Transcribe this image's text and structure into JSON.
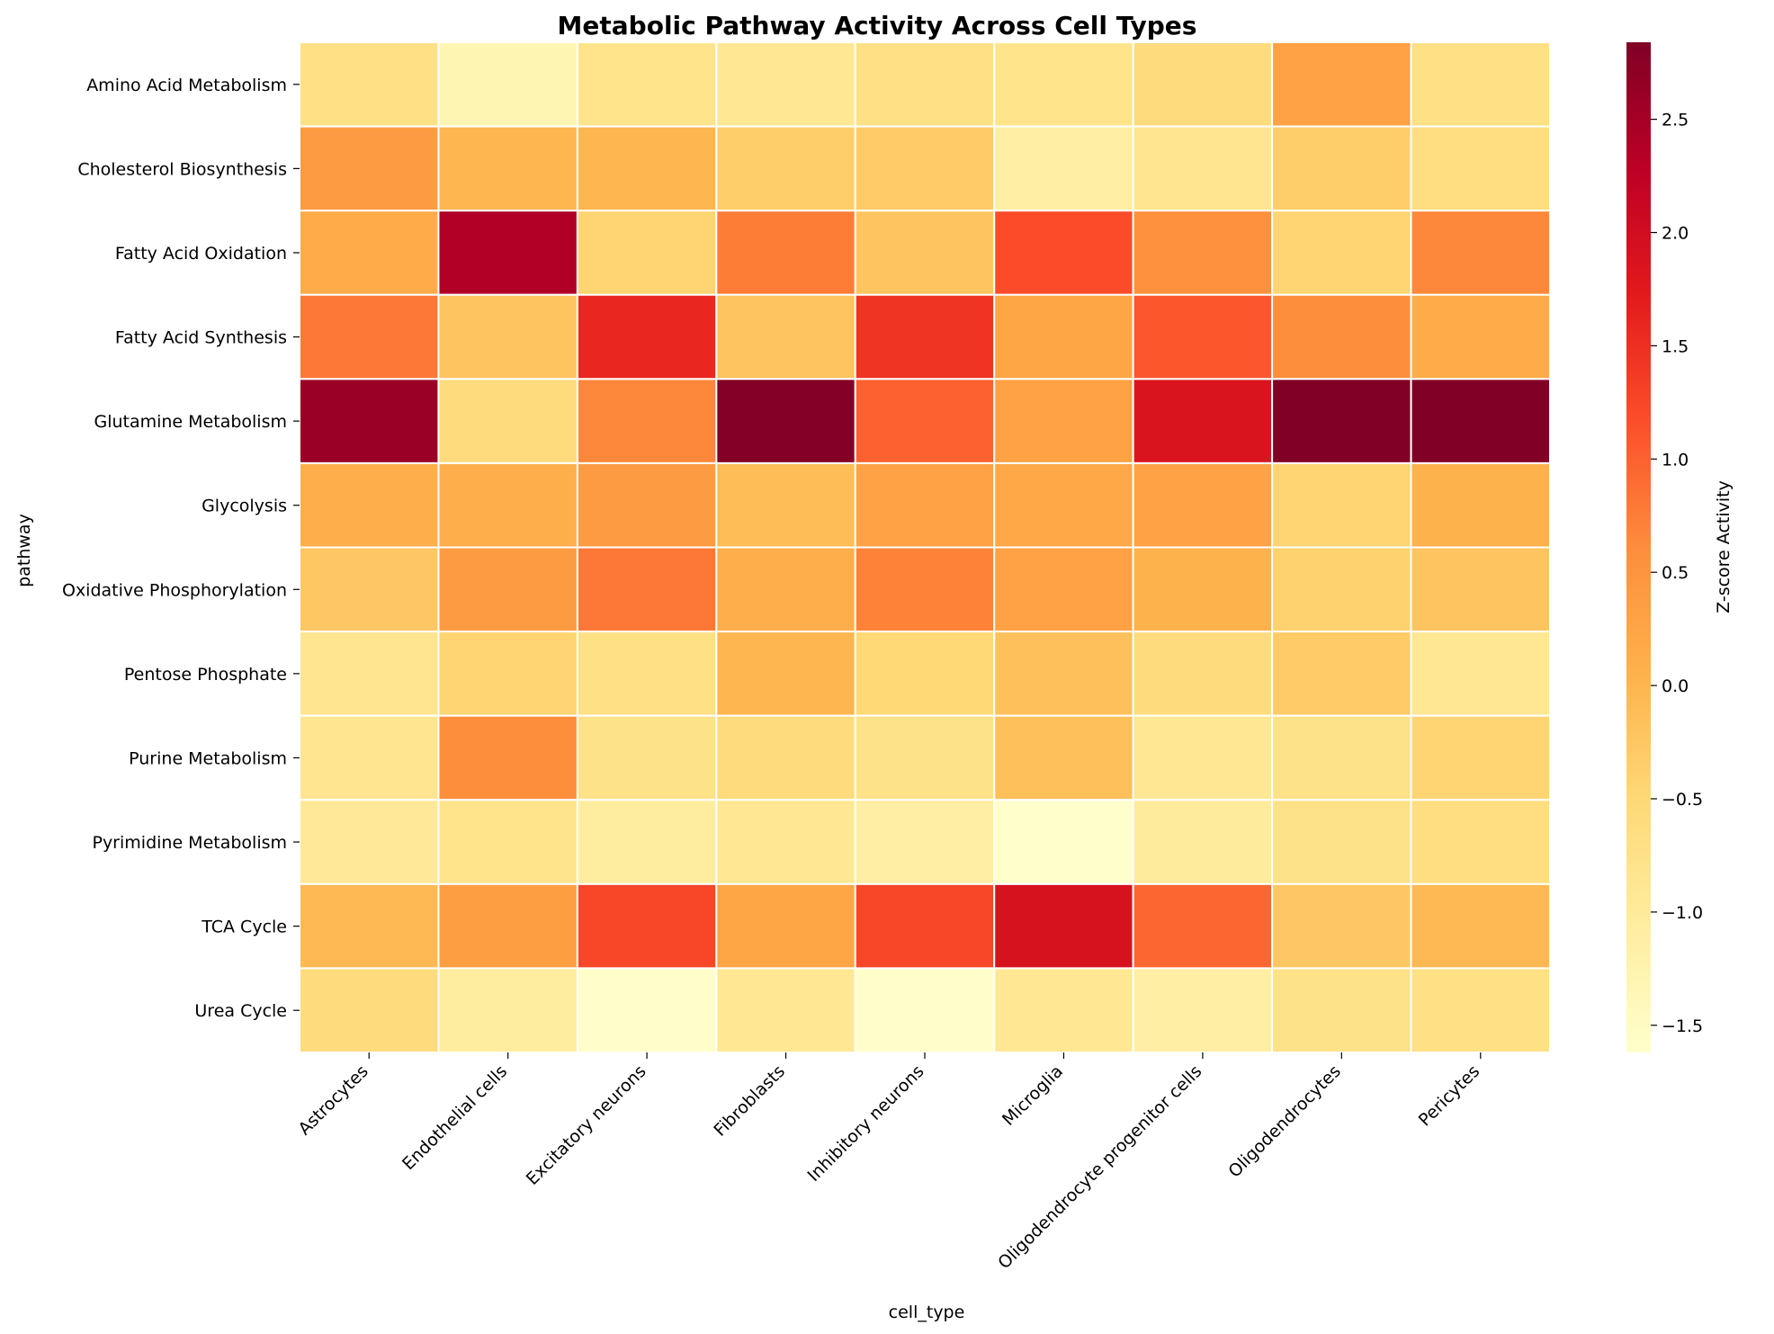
{
  "chart_data": {
    "type": "heatmap",
    "title": "Metabolic Pathway Activity Across Cell Types",
    "xlabel": "cell_type",
    "ylabel": "pathway",
    "colorbar_label": "Z-score Activity",
    "colormap": "YlOrRd",
    "vmin": -1.62,
    "vmax": 2.84,
    "colorbar_ticks": [
      "2.5",
      "2.0",
      "1.5",
      "1.0",
      "0.5",
      "0.0",
      "−0.5",
      "−1.0",
      "−1.5"
    ],
    "colorbar_tick_values": [
      2.5,
      2.0,
      1.5,
      1.0,
      0.5,
      0.0,
      -0.5,
      -1.0,
      -1.5
    ],
    "grid": false,
    "columns": [
      "Astrocytes",
      "Endothelial cells",
      "Excitatory neurons",
      "Fibroblasts",
      "Inhibitory neurons",
      "Microglia",
      "Oligodendrocyte progenitor cells",
      "Oligodendrocytes",
      "Pericytes"
    ],
    "rows": [
      "Amino Acid Metabolism",
      "Cholesterol Biosynthesis",
      "Fatty Acid Oxidation",
      "Fatty Acid Synthesis",
      "Glutamine Metabolism",
      "Glycolysis",
      "Oxidative Phosphorylation",
      "Pentose Phosphate",
      "Purine Metabolism",
      "Pyrimidine Metabolism",
      "TCA Cycle",
      "Urea Cycle"
    ],
    "values": [
      [
        -0.7,
        -1.3,
        -0.8,
        -0.9,
        -0.7,
        -0.8,
        -0.6,
        0.3,
        -0.7
      ],
      [
        0.4,
        0.0,
        0.0,
        -0.35,
        -0.3,
        -1.1,
        -0.85,
        -0.35,
        -0.65
      ],
      [
        0.15,
        2.4,
        -0.45,
        0.75,
        -0.2,
        1.2,
        0.55,
        -0.45,
        0.65
      ],
      [
        0.8,
        -0.2,
        1.6,
        -0.2,
        1.45,
        0.25,
        1.1,
        0.6,
        0.15
      ],
      [
        2.6,
        -0.6,
        0.65,
        2.8,
        1.0,
        0.3,
        1.85,
        2.9,
        2.9
      ],
      [
        0.1,
        0.1,
        0.4,
        -0.1,
        0.3,
        0.2,
        0.3,
        -0.45,
        0.05
      ],
      [
        -0.25,
        0.4,
        0.8,
        0.1,
        0.7,
        0.3,
        0.05,
        -0.4,
        -0.2
      ],
      [
        -0.85,
        -0.45,
        -0.7,
        0.0,
        -0.5,
        -0.15,
        -0.6,
        -0.3,
        -0.9
      ],
      [
        -0.85,
        0.6,
        -0.75,
        -0.6,
        -0.75,
        -0.15,
        -0.9,
        -0.75,
        -0.45
      ],
      [
        -0.95,
        -0.8,
        -1.05,
        -0.9,
        -1.1,
        -1.62,
        -1.0,
        -0.75,
        -0.65
      ],
      [
        -0.05,
        0.35,
        1.25,
        0.25,
        1.25,
        1.9,
        0.95,
        -0.25,
        -0.05
      ],
      [
        -0.6,
        -1.05,
        -1.6,
        -0.9,
        -1.6,
        -0.9,
        -1.1,
        -0.75,
        -0.7
      ]
    ]
  }
}
